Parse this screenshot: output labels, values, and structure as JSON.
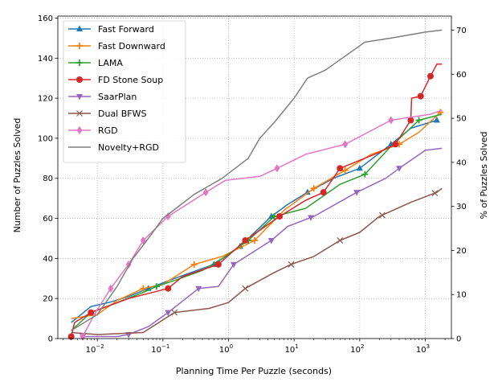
{
  "chart_data": {
    "type": "line",
    "xlabel": "Planning Time Per Puzzle (seconds)",
    "ylabel": "Number of Puzzles Solved",
    "ylabel_right": "% of Puzzles Solved",
    "x_scale": "log",
    "xlim": [
      0.0025,
      2500
    ],
    "ylim": [
      0,
      161
    ],
    "ylim_right": [
      0,
      73.2
    ],
    "x_ticks": [
      0.01,
      0.1,
      1,
      10,
      100,
      1000
    ],
    "x_tick_labels": [
      {
        "base": "10",
        "exp": "−2"
      },
      {
        "base": "10",
        "exp": "−1"
      },
      {
        "base": "10",
        "exp": "0"
      },
      {
        "base": "10",
        "exp": "1"
      },
      {
        "base": "10",
        "exp": "2"
      },
      {
        "base": "10",
        "exp": "3"
      }
    ],
    "y_ticks": [
      0,
      20,
      40,
      60,
      80,
      100,
      120,
      140,
      160
    ],
    "y_tick_labels": [
      "0",
      "20",
      "40",
      "60",
      "80",
      "100",
      "120",
      "140",
      "160"
    ],
    "y_right_ticks": [
      0,
      10,
      20,
      30,
      40,
      50,
      60,
      70
    ],
    "y_right_tick_labels": [
      "0",
      "10",
      "20",
      "30",
      "40",
      "50",
      "60",
      "70"
    ],
    "grid": true,
    "legend_position": "top-left",
    "series": [
      {
        "name": "Fast Forward",
        "color": "#1f77b4",
        "marker": "triangle",
        "x": [
          0.004,
          0.008,
          0.015,
          0.03,
          0.06,
          0.15,
          0.6,
          1.5,
          4.5,
          8,
          16,
          40,
          100,
          300,
          600,
          1500
        ],
        "y": [
          8,
          16,
          18,
          21,
          25,
          30,
          37,
          46,
          61,
          67,
          73,
          80,
          85,
          97,
          105,
          109
        ],
        "mark_x": [
          0.06,
          0.6,
          1.5,
          4.5,
          16,
          100,
          300,
          1500
        ]
      },
      {
        "name": "Fast Downward",
        "color": "#ff7f0e",
        "marker": "plus",
        "x": [
          0.004,
          0.01,
          0.02,
          0.05,
          0.1,
          0.3,
          0.8,
          2.5,
          7,
          20,
          60,
          150,
          400,
          800,
          1700
        ],
        "y": [
          10,
          12,
          19,
          25,
          27,
          37,
          41,
          49,
          64,
          75,
          84,
          92,
          97,
          103,
          113
        ],
        "mark_x": [
          0.05,
          0.3,
          2.5,
          20,
          60,
          400,
          1700
        ]
      },
      {
        "name": "LAMA",
        "color": "#2ca02c",
        "marker": "plus",
        "x": [
          0.004,
          0.008,
          0.02,
          0.05,
          0.08,
          0.15,
          0.4,
          0.8,
          2,
          5,
          15,
          50,
          120,
          300,
          800,
          1800
        ],
        "y": [
          4,
          13,
          18,
          23,
          26,
          29,
          34,
          40,
          49,
          61,
          65,
          77,
          82,
          96,
          109,
          112
        ],
        "mark_x": [
          0.08,
          2,
          5,
          120,
          800
        ]
      },
      {
        "name": "FD Stone Soup",
        "color": "#d62728",
        "marker": "circle",
        "x": [
          0.004,
          0.0045,
          0.008,
          0.03,
          0.12,
          0.2,
          0.7,
          1.8,
          6,
          15,
          28,
          50,
          200,
          350,
          600,
          620,
          850,
          1200,
          1500,
          1800
        ],
        "y": [
          1,
          8,
          13,
          20,
          25,
          31,
          37,
          49,
          61,
          69,
          73,
          85,
          93,
          97,
          109,
          120,
          121,
          131,
          137,
          137
        ],
        "mark_x": [
          0.004,
          0.008,
          0.12,
          0.7,
          1.8,
          6,
          28,
          50,
          350,
          600,
          850,
          1200
        ]
      },
      {
        "name": "SaarPlan",
        "color": "#9467bd",
        "marker": "triangle-down",
        "x": [
          0.006,
          0.02,
          0.03,
          0.06,
          0.12,
          0.35,
          0.7,
          1.2,
          4.5,
          8,
          20,
          90,
          250,
          400,
          1000,
          1800
        ],
        "y": [
          1,
          1,
          2,
          6,
          13,
          25,
          26,
          37,
          49,
          56,
          61,
          73,
          80,
          85,
          94,
          95
        ],
        "mark_x": [
          0.006,
          0.03,
          0.12,
          0.35,
          1.2,
          4.5,
          18,
          90,
          400
        ]
      },
      {
        "name": "Dual BFWS",
        "color": "#8c564b",
        "marker": "x",
        "x": [
          0.004,
          0.01,
          0.05,
          0.15,
          0.5,
          1.0,
          1.8,
          5,
          9,
          20,
          50,
          100,
          200,
          600,
          1500,
          1800
        ],
        "y": [
          3,
          2,
          3,
          13,
          15,
          18,
          25,
          33,
          37,
          41,
          49,
          53,
          61,
          68,
          73,
          75
        ],
        "mark_x": [
          0.15,
          1.8,
          9,
          50,
          220,
          1400
        ]
      },
      {
        "name": "RGD",
        "color": "#e377c2",
        "marker": "diamond",
        "x": [
          0.006,
          0.009,
          0.016,
          0.03,
          0.05,
          0.12,
          0.45,
          0.9,
          3,
          5.5,
          15,
          60,
          300,
          1200,
          1800
        ],
        "y": [
          1,
          12,
          25,
          37,
          49,
          61,
          73,
          79,
          81,
          85,
          92,
          97,
          109,
          112,
          114
        ],
        "mark_x": [
          0.006,
          0.016,
          0.03,
          0.05,
          0.12,
          0.45,
          5.5,
          60,
          300
        ]
      },
      {
        "name": "Novelty+RGD",
        "color": "#7f7f7f",
        "marker": "none",
        "x": [
          0.004,
          0.01,
          0.02,
          0.035,
          0.06,
          0.1,
          0.3,
          0.8,
          2,
          3,
          5,
          10,
          16,
          30,
          60,
          120,
          300,
          1000,
          1800
        ],
        "y": [
          4,
          12,
          26,
          40,
          50,
          60,
          72,
          80,
          90,
          100,
          108,
          120,
          130,
          134,
          141,
          148,
          150,
          153,
          154
        ],
        "mark_x": []
      }
    ]
  }
}
